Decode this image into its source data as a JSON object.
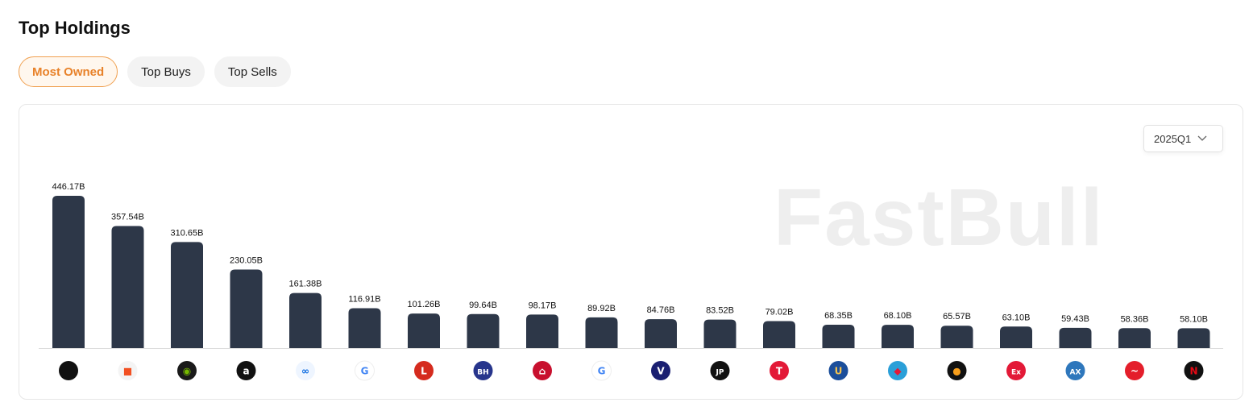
{
  "header": {
    "title": "Top Holdings"
  },
  "tabs": [
    {
      "label": "Most Owned",
      "active": true
    },
    {
      "label": "Top Buys",
      "active": false
    },
    {
      "label": "Top Sells",
      "active": false
    }
  ],
  "period_select": {
    "value": "2025Q1",
    "icon": "chevron-down-icon"
  },
  "watermark": "FastBull",
  "colors": {
    "bar": "#2d3748",
    "accent": "#e8822a"
  },
  "chart_data": {
    "type": "bar",
    "unit": "B",
    "labels": [
      "446.17B",
      "357.54B",
      "310.65B",
      "230.05B",
      "161.38B",
      "116.91B",
      "101.26B",
      "99.64B",
      "98.17B",
      "89.92B",
      "84.76B",
      "83.52B",
      "79.02B",
      "68.35B",
      "68.10B",
      "65.57B",
      "63.10B",
      "59.43B",
      "58.36B",
      "58.10B"
    ],
    "values": [
      446.17,
      357.54,
      310.65,
      230.05,
      161.38,
      116.91,
      101.26,
      99.64,
      98.17,
      89.92,
      84.76,
      83.52,
      79.02,
      68.35,
      68.1,
      65.57,
      63.1,
      59.43,
      58.36,
      58.1
    ],
    "logos": [
      {
        "icon": "apple-logo-icon",
        "bg": "#111111",
        "fg": "#ffffff",
        "glyph": ""
      },
      {
        "icon": "microsoft-logo-icon",
        "bg": "#f4f4f4",
        "fg": "#f25022",
        "glyph": "■"
      },
      {
        "icon": "nvidia-logo-icon",
        "bg": "#1a1a1a",
        "fg": "#76b900",
        "glyph": "◉"
      },
      {
        "icon": "amazon-logo-icon",
        "bg": "#111111",
        "fg": "#ffffff",
        "glyph": "a"
      },
      {
        "icon": "meta-logo-icon",
        "bg": "#eef5ff",
        "fg": "#0668e1",
        "glyph": "∞"
      },
      {
        "icon": "google-logo-icon",
        "bg": "#ffffff",
        "fg": "#4285f4",
        "glyph": "G"
      },
      {
        "icon": "eli-lilly-logo-icon",
        "bg": "#d52b1e",
        "fg": "#ffffff",
        "glyph": "L"
      },
      {
        "icon": "berkshire-logo-icon",
        "bg": "#27358c",
        "fg": "#ffffff",
        "glyph": "BH"
      },
      {
        "icon": "broadcom-logo-icon",
        "bg": "#c8102e",
        "fg": "#ffffff",
        "glyph": "⌂"
      },
      {
        "icon": "google-logo-icon",
        "bg": "#ffffff",
        "fg": "#4285f4",
        "glyph": "G"
      },
      {
        "icon": "visa-logo-icon",
        "bg": "#1a1f71",
        "fg": "#ffffff",
        "glyph": "V"
      },
      {
        "icon": "jpmorgan-logo-icon",
        "bg": "#111111",
        "fg": "#ffffff",
        "glyph": "JP"
      },
      {
        "icon": "tesla-logo-icon",
        "bg": "#e31937",
        "fg": "#ffffff",
        "glyph": "T"
      },
      {
        "icon": "unitedhealth-logo-icon",
        "bg": "#1b4e9b",
        "fg": "#f2c14e",
        "glyph": "U"
      },
      {
        "icon": "bank-logo-icon",
        "bg": "#2a9fd8",
        "fg": "#e31937",
        "glyph": "◆"
      },
      {
        "icon": "mastercard-logo-icon",
        "bg": "#111111",
        "fg": "#f79e1b",
        "glyph": "●"
      },
      {
        "icon": "exxon-logo-icon",
        "bg": "#e31937",
        "fg": "#ffffff",
        "glyph": "Ex"
      },
      {
        "icon": "amex-logo-icon",
        "bg": "#2e77bc",
        "fg": "#ffffff",
        "glyph": "AX"
      },
      {
        "icon": "coca-cola-logo-icon",
        "bg": "#e41e2b",
        "fg": "#ffffff",
        "glyph": "~"
      },
      {
        "icon": "netflix-logo-icon",
        "bg": "#111111",
        "fg": "#e50914",
        "glyph": "N"
      }
    ],
    "xlabel": "",
    "ylabel": "",
    "grid": false,
    "legend": "none"
  }
}
